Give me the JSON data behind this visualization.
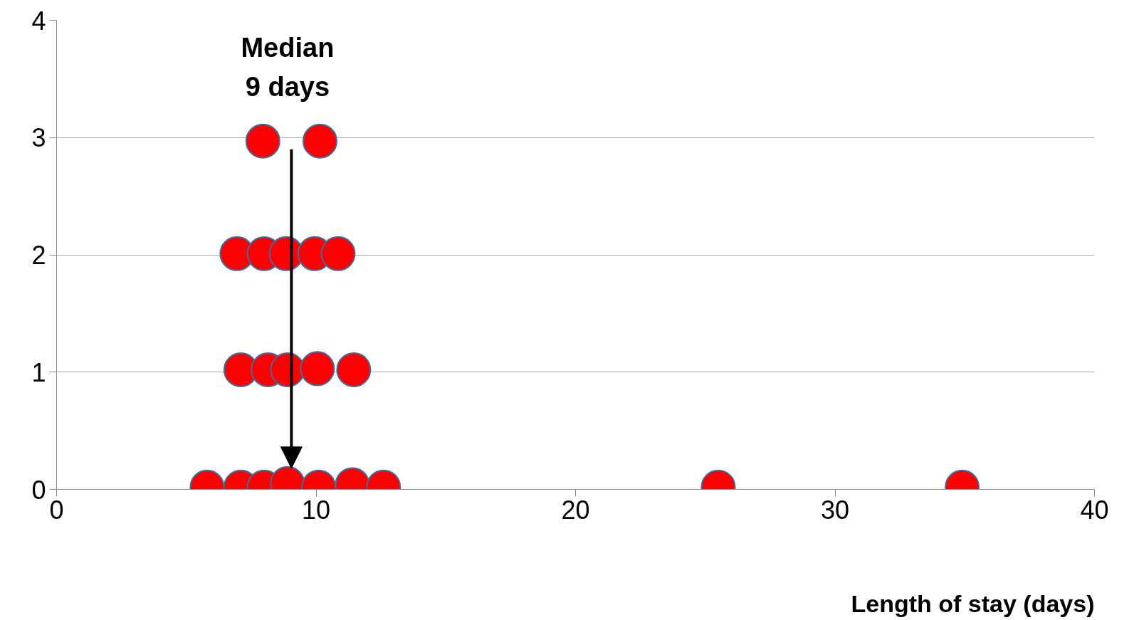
{
  "chart_data": {
    "type": "scatter",
    "xlabel": "Length of stay (days)",
    "x": [
      5.8,
      7.1,
      8.0,
      8.9,
      10.1,
      11.4,
      12.6,
      25.5,
      34.9,
      7.1,
      8.15,
      8.9,
      10.05,
      11.45,
      6.95,
      8.0,
      8.85,
      9.95,
      10.85,
      7.95,
      10.15
    ],
    "values": [
      0.02,
      0.02,
      0.02,
      0.05,
      0.02,
      0.04,
      0.02,
      0.02,
      0.02,
      1.02,
      1.02,
      1.02,
      1.03,
      1.02,
      2.01,
      2.01,
      2.01,
      2.01,
      2.01,
      2.97,
      2.97
    ],
    "color": "#ff0000",
    "marker": "circle",
    "xlim": [
      0,
      40
    ],
    "ylim": [
      0,
      4
    ],
    "xticks": [
      0,
      10,
      20,
      30,
      40
    ],
    "yticks": [
      0,
      1,
      2,
      3,
      4
    ],
    "grid": "y",
    "annotations": [
      "Median\n9 days"
    ]
  }
}
